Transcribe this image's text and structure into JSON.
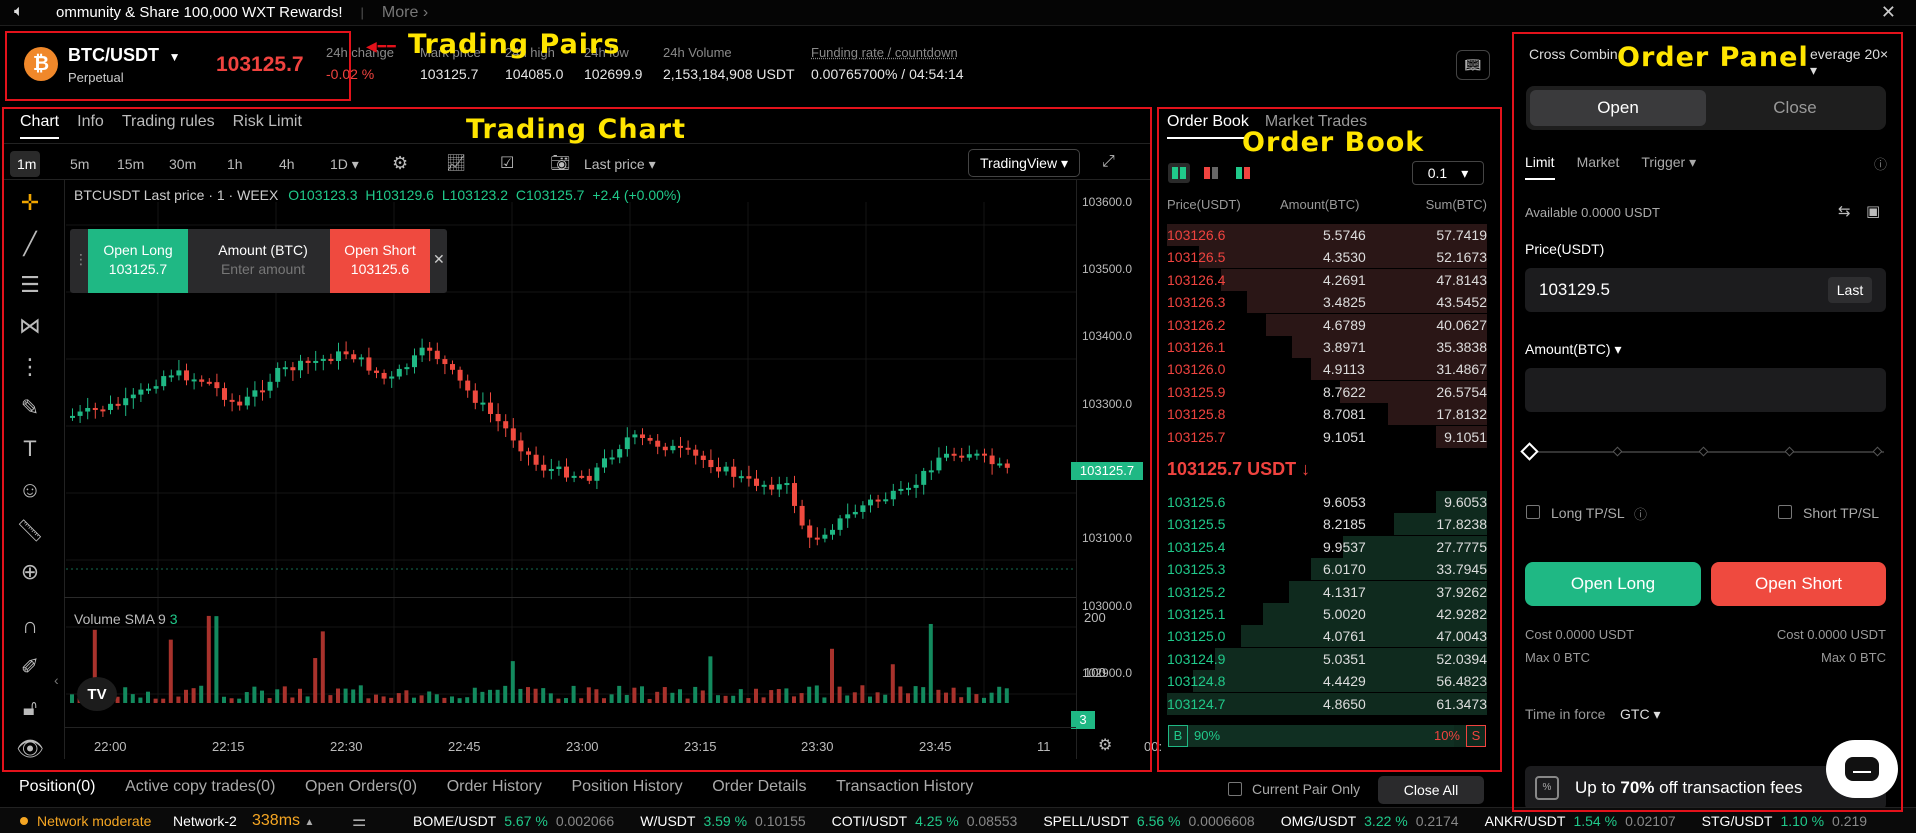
{
  "banner": {
    "text": "ommunity & Share 100,000 WXT Rewards!",
    "sep": "|",
    "more": "More"
  },
  "ticker": {
    "pair": "BTC/USDT",
    "pair_sub": "Perpetual",
    "price": "103125.7",
    "stats": [
      {
        "label": "24h change",
        "value": "-0.02 %"
      },
      {
        "label": "Mark price",
        "value": "103125.7"
      },
      {
        "label": "24h high",
        "value": "104085.0"
      },
      {
        "label": "24h low",
        "value": "102699.9"
      },
      {
        "label": "24h Volume",
        "value": "2,153,184,908 USDT"
      },
      {
        "label": "Funding rate / countdown",
        "value": "0.00765700% / 04:54:14"
      }
    ]
  },
  "annotations": {
    "trading_pairs": "Trading Pairs",
    "trading_chart": "Trading Chart",
    "order_book": "Order Book",
    "order_panel": "Order Panel"
  },
  "chart_tabs": [
    "Chart",
    "Info",
    "Trading rules",
    "Risk Limit"
  ],
  "timeframes": [
    "1m",
    "5m",
    "15m",
    "30m",
    "1h",
    "4h",
    "1D"
  ],
  "chart_toolbar": {
    "last_price": "Last price",
    "tradingview": "TradingView"
  },
  "chart_header": {
    "symbol": "BTCUSDT Last price · 1 · WEEX",
    "o": "O103123.3",
    "h": "H103129.6",
    "l": "L103123.2",
    "c": "C103125.7",
    "chg": "+2.4 (+0.00%)"
  },
  "quick_trade": {
    "long_label": "Open Long",
    "long_price": "103125.7",
    "amount_label": "Amount (BTC)",
    "amount_placeholder": "Enter amount",
    "short_label": "Open Short",
    "short_price": "103125.6"
  },
  "price_axis": [
    "103600.0",
    "103500.0",
    "103400.0",
    "103300.0",
    "103200.0",
    "103100.0",
    "103000.0",
    "102900.0"
  ],
  "last_price_tag": "103125.7",
  "volume": {
    "label": "Volume SMA 9",
    "value": "3",
    "axis": [
      "200",
      "100"
    ],
    "tag": "3"
  },
  "time_axis": [
    "22:00",
    "22:15",
    "22:30",
    "22:45",
    "23:00",
    "23:15",
    "23:30",
    "23:45",
    "11",
    "00:"
  ],
  "order_book": {
    "tabs": [
      "Order Book",
      "Market Trades"
    ],
    "precision": "0.1",
    "headers": [
      "Price(USDT)",
      "Amount(BTC)",
      "Sum(BTC)"
    ],
    "asks": [
      {
        "price": "103126.6",
        "amount": "5.5746",
        "sum": "57.7419",
        "depth": 1.0
      },
      {
        "price": "103126.5",
        "amount": "4.3530",
        "sum": "52.1673",
        "depth": 0.9
      },
      {
        "price": "103126.4",
        "amount": "4.2691",
        "sum": "47.8143",
        "depth": 0.83
      },
      {
        "price": "103126.3",
        "amount": "3.4825",
        "sum": "43.5452",
        "depth": 0.75
      },
      {
        "price": "103126.2",
        "amount": "4.6789",
        "sum": "40.0627",
        "depth": 0.69
      },
      {
        "price": "103126.1",
        "amount": "3.8971",
        "sum": "35.3838",
        "depth": 0.61
      },
      {
        "price": "103126.0",
        "amount": "4.9113",
        "sum": "31.4867",
        "depth": 0.55
      },
      {
        "price": "103125.9",
        "amount": "8.7622",
        "sum": "26.5754",
        "depth": 0.46
      },
      {
        "price": "103125.8",
        "amount": "8.7081",
        "sum": "17.8132",
        "depth": 0.31
      },
      {
        "price": "103125.7",
        "amount": "9.1051",
        "sum": "9.1051",
        "depth": 0.16
      }
    ],
    "mid_price": "103125.7 USDT ↓",
    "bids": [
      {
        "price": "103125.6",
        "amount": "9.6053",
        "sum": "9.6053",
        "depth": 0.16
      },
      {
        "price": "103125.5",
        "amount": "8.2185",
        "sum": "17.8238",
        "depth": 0.29
      },
      {
        "price": "103125.4",
        "amount": "9.9537",
        "sum": "27.7775",
        "depth": 0.45
      },
      {
        "price": "103125.3",
        "amount": "6.0170",
        "sum": "33.7945",
        "depth": 0.55
      },
      {
        "price": "103125.2",
        "amount": "4.1317",
        "sum": "37.9262",
        "depth": 0.62
      },
      {
        "price": "103125.1",
        "amount": "5.0020",
        "sum": "42.9282",
        "depth": 0.7
      },
      {
        "price": "103125.0",
        "amount": "4.0761",
        "sum": "47.0043",
        "depth": 0.77
      },
      {
        "price": "103124.9",
        "amount": "5.0351",
        "sum": "52.0394",
        "depth": 0.85
      },
      {
        "price": "103124.8",
        "amount": "4.4429",
        "sum": "56.4823",
        "depth": 0.92
      },
      {
        "price": "103124.7",
        "amount": "4.8650",
        "sum": "61.3473",
        "depth": 1.0
      }
    ],
    "ratio": {
      "b": "B",
      "b_pct": "90%",
      "s_pct": "10%",
      "s": "S",
      "b_fraction": 0.9
    }
  },
  "order_panel": {
    "margin_mode": "Cross Combin",
    "leverage": "everage 20×",
    "open": "Open",
    "close": "Close",
    "order_types": [
      "Limit",
      "Market",
      "Trigger"
    ],
    "available": "Available 0.0000 USDT",
    "price_label": "Price(USDT)",
    "price_value": "103129.5",
    "last_btn": "Last",
    "amount_label": "Amount(BTC)",
    "long_tpsl": "Long TP/SL",
    "short_tpsl": "Short TP/SL",
    "open_long": "Open Long",
    "open_short": "Open Short",
    "cost_left": "Cost 0.0000 USDT",
    "max_left": "Max 0 BTC",
    "cost_right": "Cost 0.0000 USDT",
    "max_right": "Max 0 BTC",
    "time_in_force": "Time in force",
    "tif_value": "GTC",
    "promo": "Up to 70% off transaction fees",
    "promo_bold": "70%"
  },
  "bottom_tabs": [
    "Position(0)",
    "Active copy trades(0)",
    "Open Orders(0)",
    "Order History",
    "Position History",
    "Order Details",
    "Transaction History"
  ],
  "bottom_right": {
    "current_pair": "Current Pair Only",
    "close_all": "Close All"
  },
  "status_bar": {
    "network": "Network moderate",
    "node": "Network-2",
    "latency": "338ms",
    "markets": [
      {
        "pair": "BOME/USDT",
        "chg": "5.67 %",
        "price": "0.002066"
      },
      {
        "pair": "W/USDT",
        "chg": "3.59 %",
        "price": "0.10155"
      },
      {
        "pair": "COTI/USDT",
        "chg": "4.25 %",
        "price": "0.08553"
      },
      {
        "pair": "SPELL/USDT",
        "chg": "6.56 %",
        "price": "0.0006608"
      },
      {
        "pair": "OMG/USDT",
        "chg": "3.22 %",
        "price": "0.2174"
      },
      {
        "pair": "ANKR/USDT",
        "chg": "1.54 %",
        "price": "0.02107"
      },
      {
        "pair": "STG/USDT",
        "chg": "1.10 %",
        "price": "0.219"
      }
    ]
  },
  "colors": {
    "up": "#20c98a",
    "down": "#f0433f",
    "annotation": "#ffe500",
    "highlight_box": "#e3121b"
  }
}
